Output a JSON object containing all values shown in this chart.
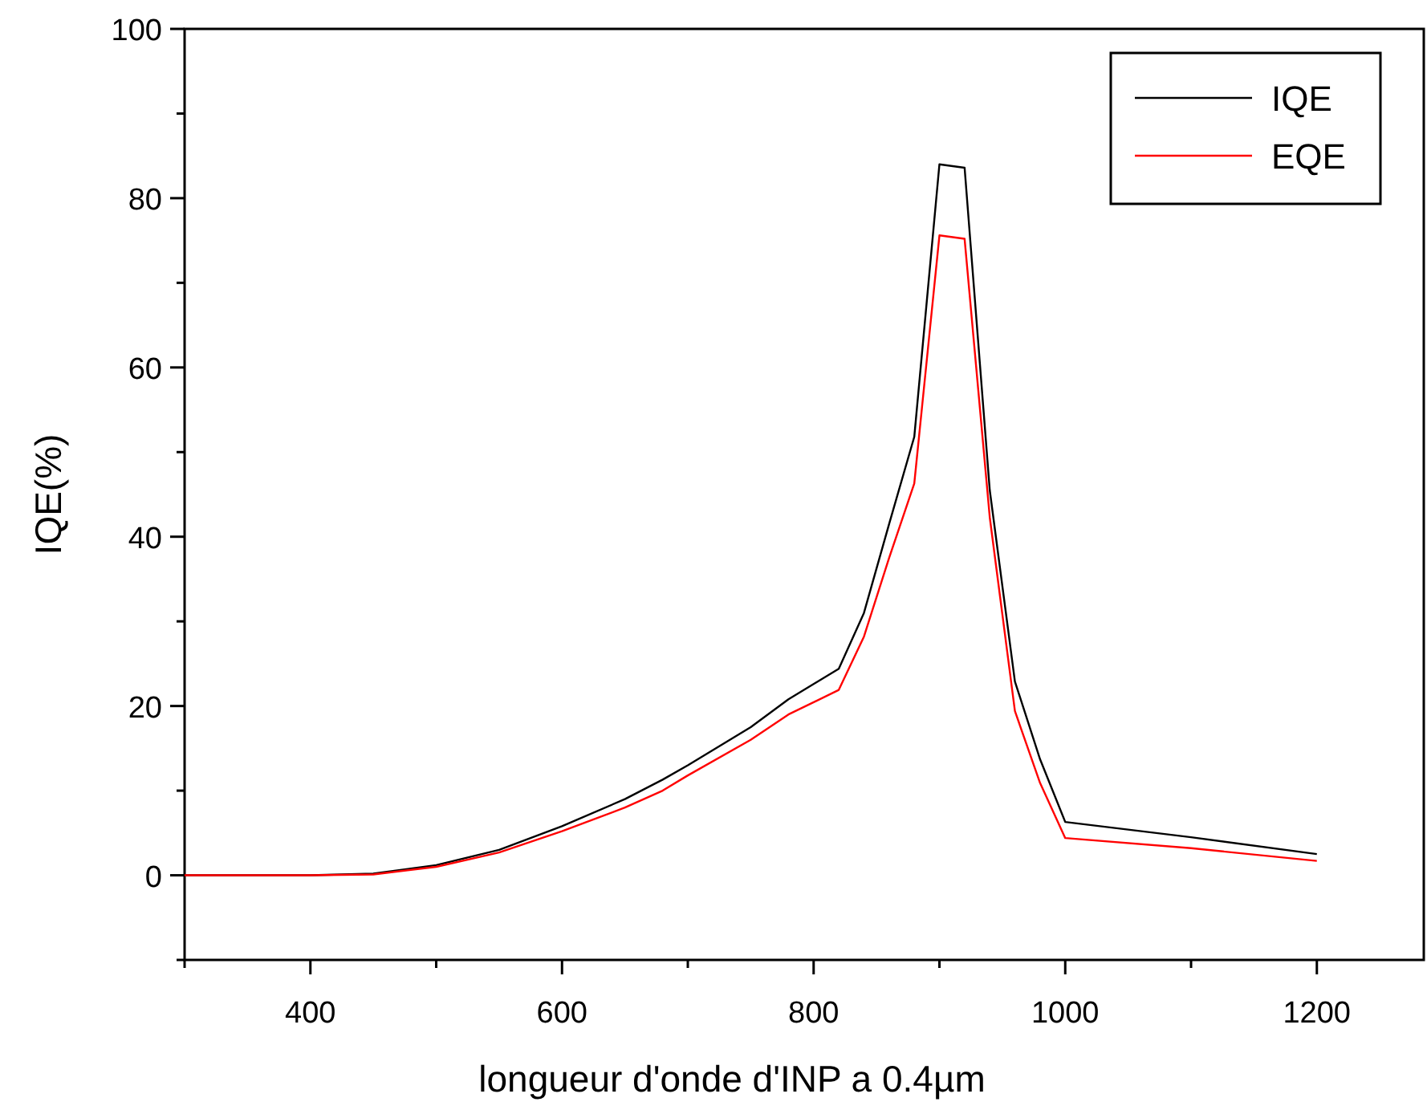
{
  "chart_data": {
    "type": "line",
    "xlabel": "longueur d'onde d'INP a 0.4µm",
    "ylabel": "IQE(%)",
    "x": [
      300,
      400,
      450,
      500,
      550,
      600,
      650,
      680,
      700,
      750,
      780,
      820,
      840,
      860,
      880,
      900,
      920,
      940,
      960,
      980,
      1000,
      1100,
      1200
    ],
    "series": [
      {
        "name": "IQE",
        "color": "#000000",
        "values": [
          0,
          0,
          0.2,
          1.2,
          3,
          5.8,
          9,
          11.3,
          13,
          17.5,
          20.8,
          24.4,
          31,
          41.5,
          51.8,
          84,
          83.6,
          45.5,
          22.9,
          13.7,
          6.3,
          4.5,
          2.5
        ]
      },
      {
        "name": "EQE",
        "color": "#ff0000",
        "values": [
          0,
          0,
          0.1,
          1,
          2.7,
          5.2,
          8,
          10,
          11.8,
          16,
          19,
          21.9,
          28.2,
          37.5,
          46.3,
          75.6,
          75.2,
          42.3,
          19.4,
          10.9,
          4.4,
          3.2,
          1.7
        ]
      }
    ],
    "xlim": [
      300,
      1285
    ],
    "ylim": [
      -10,
      100
    ],
    "xticks": [
      {
        "value": 300,
        "label": null
      },
      400,
      {
        "value": 500,
        "label": null
      },
      600,
      {
        "value": 700,
        "label": null
      },
      800,
      {
        "value": 900,
        "label": null
      },
      1000,
      {
        "value": 1100,
        "label": null
      },
      1200
    ],
    "yticks": [
      {
        "value": -10,
        "label": null
      },
      0,
      {
        "value": 10,
        "label": null
      },
      20,
      {
        "value": 30,
        "label": null
      },
      40,
      {
        "value": 50,
        "label": null
      },
      60,
      {
        "value": 70,
        "label": null
      },
      80,
      {
        "value": 90,
        "label": null
      },
      100
    ],
    "legend": "top right",
    "grid": false,
    "marker": "none",
    "line_style": "solid"
  }
}
